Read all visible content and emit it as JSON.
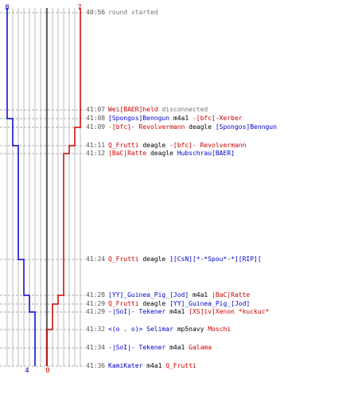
{
  "colors": {
    "blue": "#0000cc",
    "red": "#cc0000",
    "gray": "#777777",
    "text": "#000000",
    "grid": "#bbbbbb",
    "center": "#666666"
  },
  "score": {
    "blue_start": "8",
    "red_start": "7",
    "blue_end": "4",
    "red_end": "0"
  },
  "events": [
    {
      "time": "40:56",
      "parts": [
        {
          "text": "round started",
          "c": "gray"
        }
      ]
    },
    {
      "time": "41:07",
      "parts": [
        {
          "text": "Wei[BAER]held",
          "c": "red"
        },
        {
          "text": " disconnected",
          "c": "gray"
        }
      ]
    },
    {
      "time": "41:08",
      "parts": [
        {
          "text": "[Spongos]Benngun",
          "c": "blue"
        },
        {
          "text": " m4a1 ",
          "c": "text"
        },
        {
          "text": "-[bfc]-Xerber",
          "c": "red"
        }
      ]
    },
    {
      "time": "41:09",
      "parts": [
        {
          "text": "-[bfc]- Revolvermann",
          "c": "red"
        },
        {
          "text": " deagle ",
          "c": "text"
        },
        {
          "text": "[Spongos]Benngun",
          "c": "blue"
        }
      ]
    },
    {
      "time": "41:11",
      "parts": [
        {
          "text": "Q_Frutti",
          "c": "red"
        },
        {
          "text": " deagle ",
          "c": "text"
        },
        {
          "text": "-[bfc]- Revolvermann",
          "c": "red"
        }
      ]
    },
    {
      "time": "41:12",
      "parts": [
        {
          "text": "|BaC|Ratte",
          "c": "red"
        },
        {
          "text": " deagle ",
          "c": "text"
        },
        {
          "text": "Hubschrau[BAER]",
          "c": "blue"
        }
      ]
    },
    {
      "time": "41:24",
      "parts": [
        {
          "text": "Q_Frutti",
          "c": "red"
        },
        {
          "text": " deagle ",
          "c": "text"
        },
        {
          "text": "][CsN][*-*Spou*-*][RIP][",
          "c": "blue"
        }
      ]
    },
    {
      "time": "41:28",
      "parts": [
        {
          "text": "[YY]_Guinea_Pig_[Jod]",
          "c": "blue"
        },
        {
          "text": " m4a1 ",
          "c": "text"
        },
        {
          "text": "|BaC|Ratte",
          "c": "red"
        }
      ]
    },
    {
      "time": "41:29",
      "parts": [
        {
          "text": "Q_Frutti",
          "c": "red"
        },
        {
          "text": " deagle ",
          "c": "text"
        },
        {
          "text": "[YY]_Guinea_Pig_[Jod]",
          "c": "blue"
        }
      ]
    },
    {
      "time": "41:29",
      "parts": [
        {
          "text": "-|SoI|- Tekener",
          "c": "blue"
        },
        {
          "text": " m4a1 ",
          "c": "text"
        },
        {
          "text": "[XS]iv]Xenon *kuckuc*",
          "c": "red"
        }
      ]
    },
    {
      "time": "41:32",
      "parts": [
        {
          "text": "<(o . o)> Selimar",
          "c": "blue"
        },
        {
          "text": " mp5navy ",
          "c": "text"
        },
        {
          "text": "Moschi",
          "c": "red"
        }
      ]
    },
    {
      "time": "41:34",
      "parts": [
        {
          "text": "-|SoI|- Tekener",
          "c": "blue"
        },
        {
          "text": " m4a1 ",
          "c": "text"
        },
        {
          "text": "Galama",
          "c": "red"
        }
      ]
    },
    {
      "time": "41:36",
      "parts": [
        {
          "text": "KamiKater",
          "c": "blue"
        },
        {
          "text": " m4a1 ",
          "c": "text"
        },
        {
          "text": "Q_Frutti",
          "c": "red"
        }
      ]
    }
  ]
}
